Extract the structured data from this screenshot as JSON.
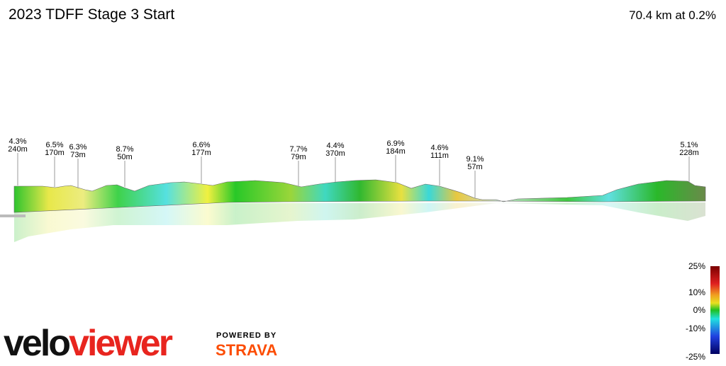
{
  "header": {
    "title": "2023 TDFF Stage 3 Start",
    "summary": "70.4 km at 0.2%"
  },
  "climbs": [
    {
      "grade": "4.3%",
      "length": "240m"
    },
    {
      "grade": "6.5%",
      "length": "170m"
    },
    {
      "grade": "6.3%",
      "length": "73m"
    },
    {
      "grade": "8.7%",
      "length": "50m"
    },
    {
      "grade": "6.6%",
      "length": "177m"
    },
    {
      "grade": "7.7%",
      "length": "79m"
    },
    {
      "grade": "4.4%",
      "length": "370m"
    },
    {
      "grade": "6.9%",
      "length": "184m"
    },
    {
      "grade": "4.6%",
      "length": "111m"
    },
    {
      "grade": "9.1%",
      "length": "57m"
    },
    {
      "grade": "5.1%",
      "length": "228m"
    }
  ],
  "legend": {
    "labels": [
      "25%",
      "10%",
      "0%",
      "-10%",
      "-25%"
    ]
  },
  "branding": {
    "logo_a": "velo",
    "logo_b": "viewer",
    "powered": "POWERED BY",
    "strava": "STRAVA"
  }
}
